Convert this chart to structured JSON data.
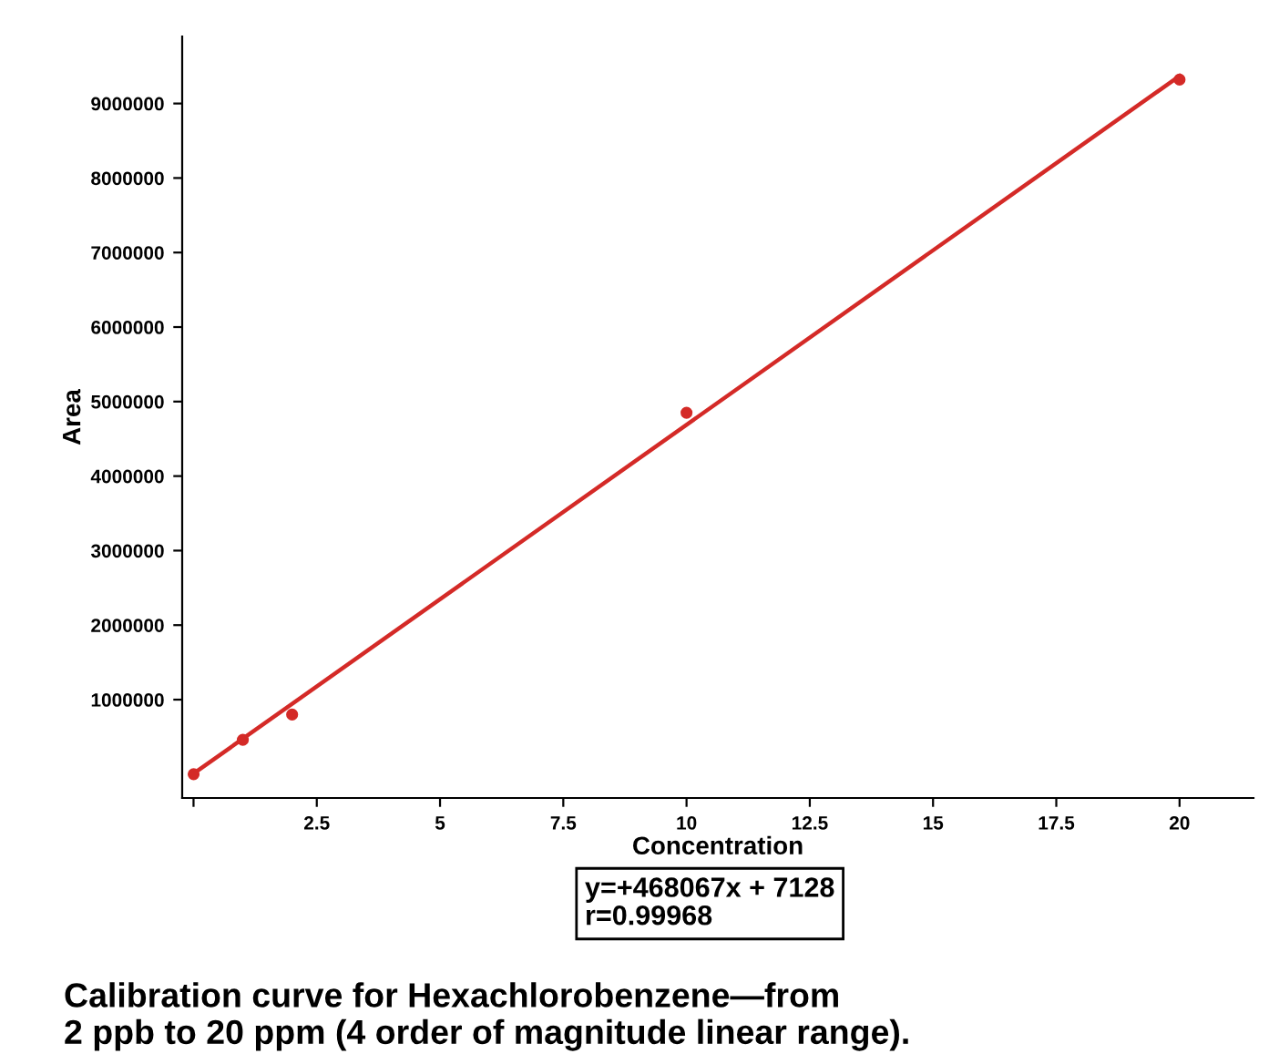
{
  "chart_data": {
    "type": "scatter",
    "xlabel": "Concentration",
    "ylabel": "Area",
    "series": [
      {
        "color": "#d42a27",
        "x": [
          0.002,
          1,
          2,
          10,
          20
        ],
        "values": [
          0,
          460000,
          800000,
          4850000,
          9320000
        ],
        "marker": "circle"
      },
      {
        "type": "line",
        "color": "#d42a27",
        "x": [
          0.002,
          20
        ],
        "values": [
          8000,
          9370000
        ],
        "marker": "none",
        "line_style": "solid"
      }
    ],
    "xlim": [
      -0.23,
      21.5
    ],
    "xticks": [
      {
        "value": 0,
        "label": null
      },
      2.5,
      5,
      7.5,
      10,
      12.5,
      15,
      17.5,
      20
    ],
    "ylim": [
      -320000,
      9900000
    ],
    "yticks": [
      1000000,
      2000000,
      3000000,
      4000000,
      5000000,
      6000000,
      7000000,
      8000000,
      9000000
    ],
    "grid": false,
    "legend": false,
    "annotations": [
      "y=+468067x + 7128\nr=0.99968",
      "Calibration curve for Hexachlorobenzene—from\n2 ppb to 20 ppm (4 order of magnitude linear range)."
    ]
  }
}
